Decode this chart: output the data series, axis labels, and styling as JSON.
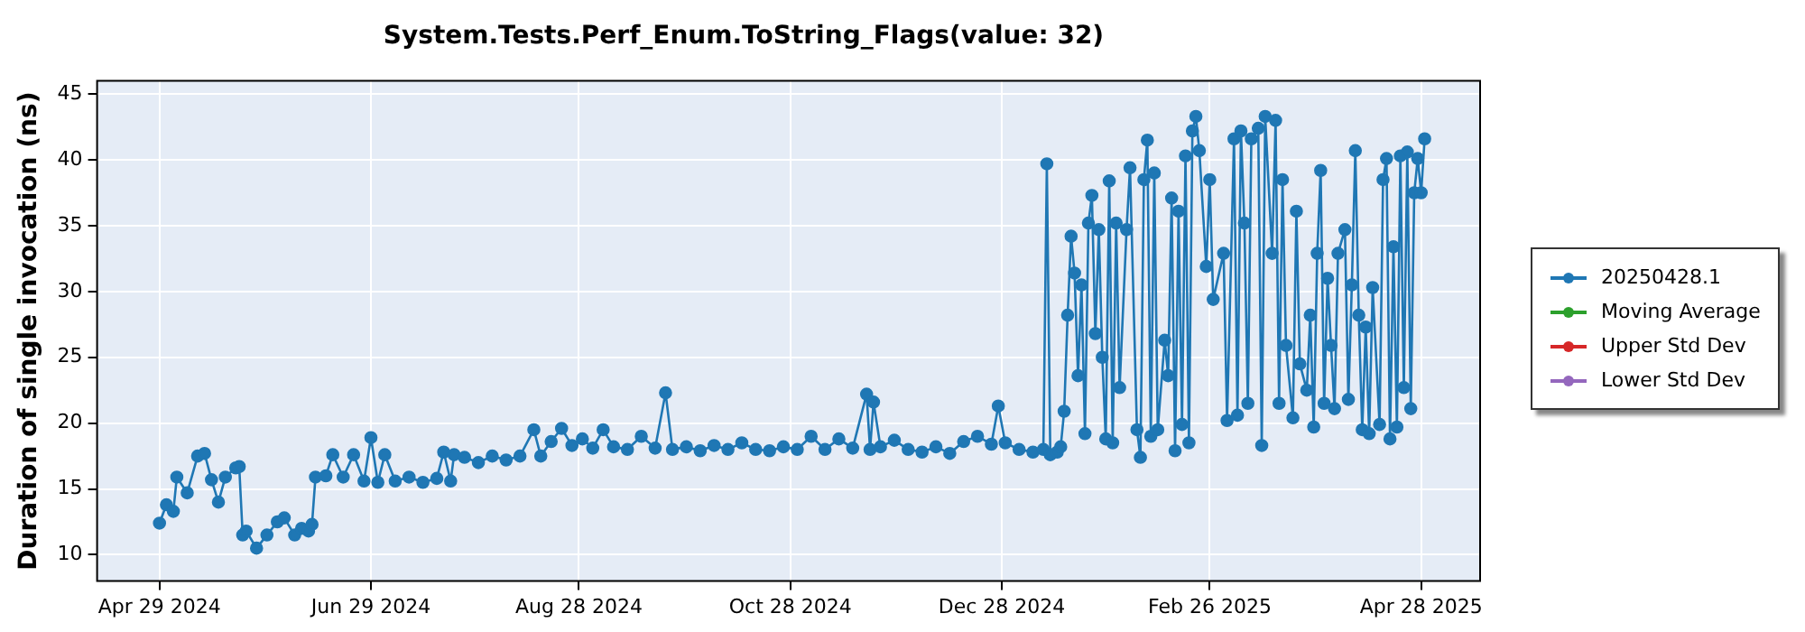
{
  "chart_data": {
    "type": "line",
    "title": "System.Tests.Perf_Enum.ToString_Flags(value: 32)",
    "ylabel": "Duration of single invocation (ns)",
    "xlim": [
      "2024-04-11",
      "2025-05-15"
    ],
    "xticks": [
      {
        "value": "2024-04-29",
        "label": "Apr 29 2024"
      },
      {
        "value": "2024-06-29",
        "label": "Jun 29 2024"
      },
      {
        "value": "2024-08-28",
        "label": "Aug 28 2024"
      },
      {
        "value": "2024-10-28",
        "label": "Oct 28 2024"
      },
      {
        "value": "2024-12-28",
        "label": "Dec 28 2024"
      },
      {
        "value": "2025-02-26",
        "label": "Feb 26 2025"
      },
      {
        "value": "2025-04-28",
        "label": "Apr 28 2025"
      }
    ],
    "ylim": [
      8,
      46
    ],
    "yticks": [
      10,
      15,
      20,
      25,
      30,
      35,
      40,
      45
    ],
    "grid": true,
    "legend": "right",
    "marker": "circle",
    "line_style": "solid",
    "series": [
      {
        "name": "20250428.1",
        "color": "#1f77b4",
        "x": [
          "2024-04-29",
          "2024-05-01",
          "2024-05-03",
          "2024-05-04",
          "2024-05-07",
          "2024-05-10",
          "2024-05-12",
          "2024-05-14",
          "2024-05-16",
          "2024-05-18",
          "2024-05-21",
          "2024-05-22",
          "2024-05-23",
          "2024-05-24",
          "2024-05-27",
          "2024-05-30",
          "2024-06-02",
          "2024-06-04",
          "2024-06-07",
          "2024-06-09",
          "2024-06-11",
          "2024-06-12",
          "2024-06-13",
          "2024-06-16",
          "2024-06-18",
          "2024-06-21",
          "2024-06-24",
          "2024-06-27",
          "2024-06-29",
          "2024-07-01",
          "2024-07-03",
          "2024-07-06",
          "2024-07-10",
          "2024-07-14",
          "2024-07-18",
          "2024-07-20",
          "2024-07-22",
          "2024-07-23",
          "2024-07-26",
          "2024-07-30",
          "2024-08-03",
          "2024-08-07",
          "2024-08-11",
          "2024-08-15",
          "2024-08-17",
          "2024-08-20",
          "2024-08-23",
          "2024-08-26",
          "2024-08-29",
          "2024-09-01",
          "2024-09-04",
          "2024-09-07",
          "2024-09-11",
          "2024-09-15",
          "2024-09-19",
          "2024-09-22",
          "2024-09-24",
          "2024-09-28",
          "2024-10-02",
          "2024-10-06",
          "2024-10-10",
          "2024-10-14",
          "2024-10-18",
          "2024-10-22",
          "2024-10-26",
          "2024-10-30",
          "2024-11-03",
          "2024-11-07",
          "2024-11-11",
          "2024-11-15",
          "2024-11-19",
          "2024-11-20",
          "2024-11-21",
          "2024-11-23",
          "2024-11-27",
          "2024-12-01",
          "2024-12-05",
          "2024-12-09",
          "2024-12-13",
          "2024-12-17",
          "2024-12-21",
          "2024-12-25",
          "2024-12-27",
          "2024-12-29",
          "2025-01-02",
          "2025-01-06",
          "2025-01-09",
          "2025-01-10",
          "2025-01-11",
          "2025-01-13",
          "2025-01-14",
          "2025-01-15",
          "2025-01-16",
          "2025-01-17",
          "2025-01-18",
          "2025-01-19",
          "2025-01-20",
          "2025-01-21",
          "2025-01-22",
          "2025-01-23",
          "2025-01-24",
          "2025-01-25",
          "2025-01-26",
          "2025-01-27",
          "2025-01-28",
          "2025-01-29",
          "2025-01-30",
          "2025-01-31",
          "2025-02-02",
          "2025-02-03",
          "2025-02-05",
          "2025-02-06",
          "2025-02-07",
          "2025-02-08",
          "2025-02-09",
          "2025-02-10",
          "2025-02-11",
          "2025-02-13",
          "2025-02-14",
          "2025-02-15",
          "2025-02-16",
          "2025-02-17",
          "2025-02-18",
          "2025-02-19",
          "2025-02-20",
          "2025-02-21",
          "2025-02-22",
          "2025-02-23",
          "2025-02-25",
          "2025-02-26",
          "2025-02-27",
          "2025-03-02",
          "2025-03-03",
          "2025-03-05",
          "2025-03-06",
          "2025-03-07",
          "2025-03-08",
          "2025-03-09",
          "2025-03-10",
          "2025-03-12",
          "2025-03-13",
          "2025-03-14",
          "2025-03-16",
          "2025-03-17",
          "2025-03-18",
          "2025-03-19",
          "2025-03-20",
          "2025-03-22",
          "2025-03-23",
          "2025-03-24",
          "2025-03-26",
          "2025-03-27",
          "2025-03-28",
          "2025-03-29",
          "2025-03-30",
          "2025-03-31",
          "2025-04-01",
          "2025-04-02",
          "2025-04-03",
          "2025-04-04",
          "2025-04-06",
          "2025-04-07",
          "2025-04-08",
          "2025-04-09",
          "2025-04-10",
          "2025-04-11",
          "2025-04-12",
          "2025-04-13",
          "2025-04-14",
          "2025-04-16",
          "2025-04-17",
          "2025-04-18",
          "2025-04-19",
          "2025-04-20",
          "2025-04-21",
          "2025-04-22",
          "2025-04-23",
          "2025-04-24",
          "2025-04-25",
          "2025-04-26",
          "2025-04-27",
          "2025-04-28",
          "2025-04-29"
        ],
        "values": [
          12.4,
          13.8,
          13.3,
          15.9,
          14.7,
          17.5,
          17.7,
          15.7,
          14.0,
          15.9,
          16.6,
          16.7,
          11.5,
          11.8,
          10.5,
          11.5,
          12.5,
          12.8,
          11.5,
          12.0,
          11.8,
          12.3,
          15.9,
          16.0,
          17.6,
          15.9,
          17.6,
          15.6,
          18.9,
          15.5,
          17.6,
          15.6,
          15.9,
          15.5,
          15.8,
          17.8,
          15.6,
          17.6,
          17.4,
          17.0,
          17.5,
          17.2,
          17.5,
          19.5,
          17.5,
          18.6,
          19.6,
          18.3,
          18.8,
          18.1,
          19.5,
          18.2,
          18.0,
          19.0,
          18.1,
          22.3,
          18.0,
          18.2,
          17.9,
          18.3,
          18.0,
          18.5,
          18.0,
          17.9,
          18.2,
          18.0,
          19.0,
          18.0,
          18.8,
          18.1,
          22.2,
          18.0,
          21.6,
          18.2,
          18.7,
          18.0,
          17.8,
          18.2,
          17.7,
          18.6,
          19.0,
          18.4,
          21.3,
          18.5,
          18.0,
          17.8,
          18.0,
          39.7,
          17.6,
          17.8,
          18.2,
          20.9,
          28.2,
          34.2,
          31.4,
          23.6,
          30.5,
          19.2,
          35.2,
          37.3,
          26.8,
          34.7,
          25.0,
          18.8,
          38.4,
          18.5,
          35.2,
          22.7,
          34.7,
          39.4,
          19.5,
          17.4,
          38.5,
          41.5,
          19.0,
          39.0,
          19.5,
          26.3,
          23.6,
          37.1,
          17.9,
          36.1,
          19.9,
          40.3,
          18.5,
          42.2,
          43.3,
          40.7,
          31.9,
          38.5,
          29.4,
          32.9,
          20.2,
          41.6,
          20.6,
          42.2,
          35.2,
          21.5,
          41.6,
          42.4,
          18.3,
          43.3,
          32.9,
          43.0,
          21.5,
          38.5,
          25.9,
          20.4,
          36.1,
          24.5,
          22.5,
          28.2,
          19.7,
          32.9,
          39.2,
          21.5,
          31.0,
          25.9,
          21.1,
          32.9,
          34.7,
          21.8,
          30.5,
          40.7,
          28.2,
          19.5,
          27.3,
          19.2,
          30.3,
          19.9,
          38.5,
          40.1,
          18.8,
          33.4,
          19.7,
          40.3,
          22.7,
          40.6,
          21.1,
          37.5,
          40.1,
          37.5,
          41.6
        ]
      },
      {
        "name": "Moving Average",
        "color": "#2ca02c"
      },
      {
        "name": "Upper Std Dev",
        "color": "#d62728"
      },
      {
        "name": "Lower Std Dev",
        "color": "#9467bd"
      }
    ]
  }
}
